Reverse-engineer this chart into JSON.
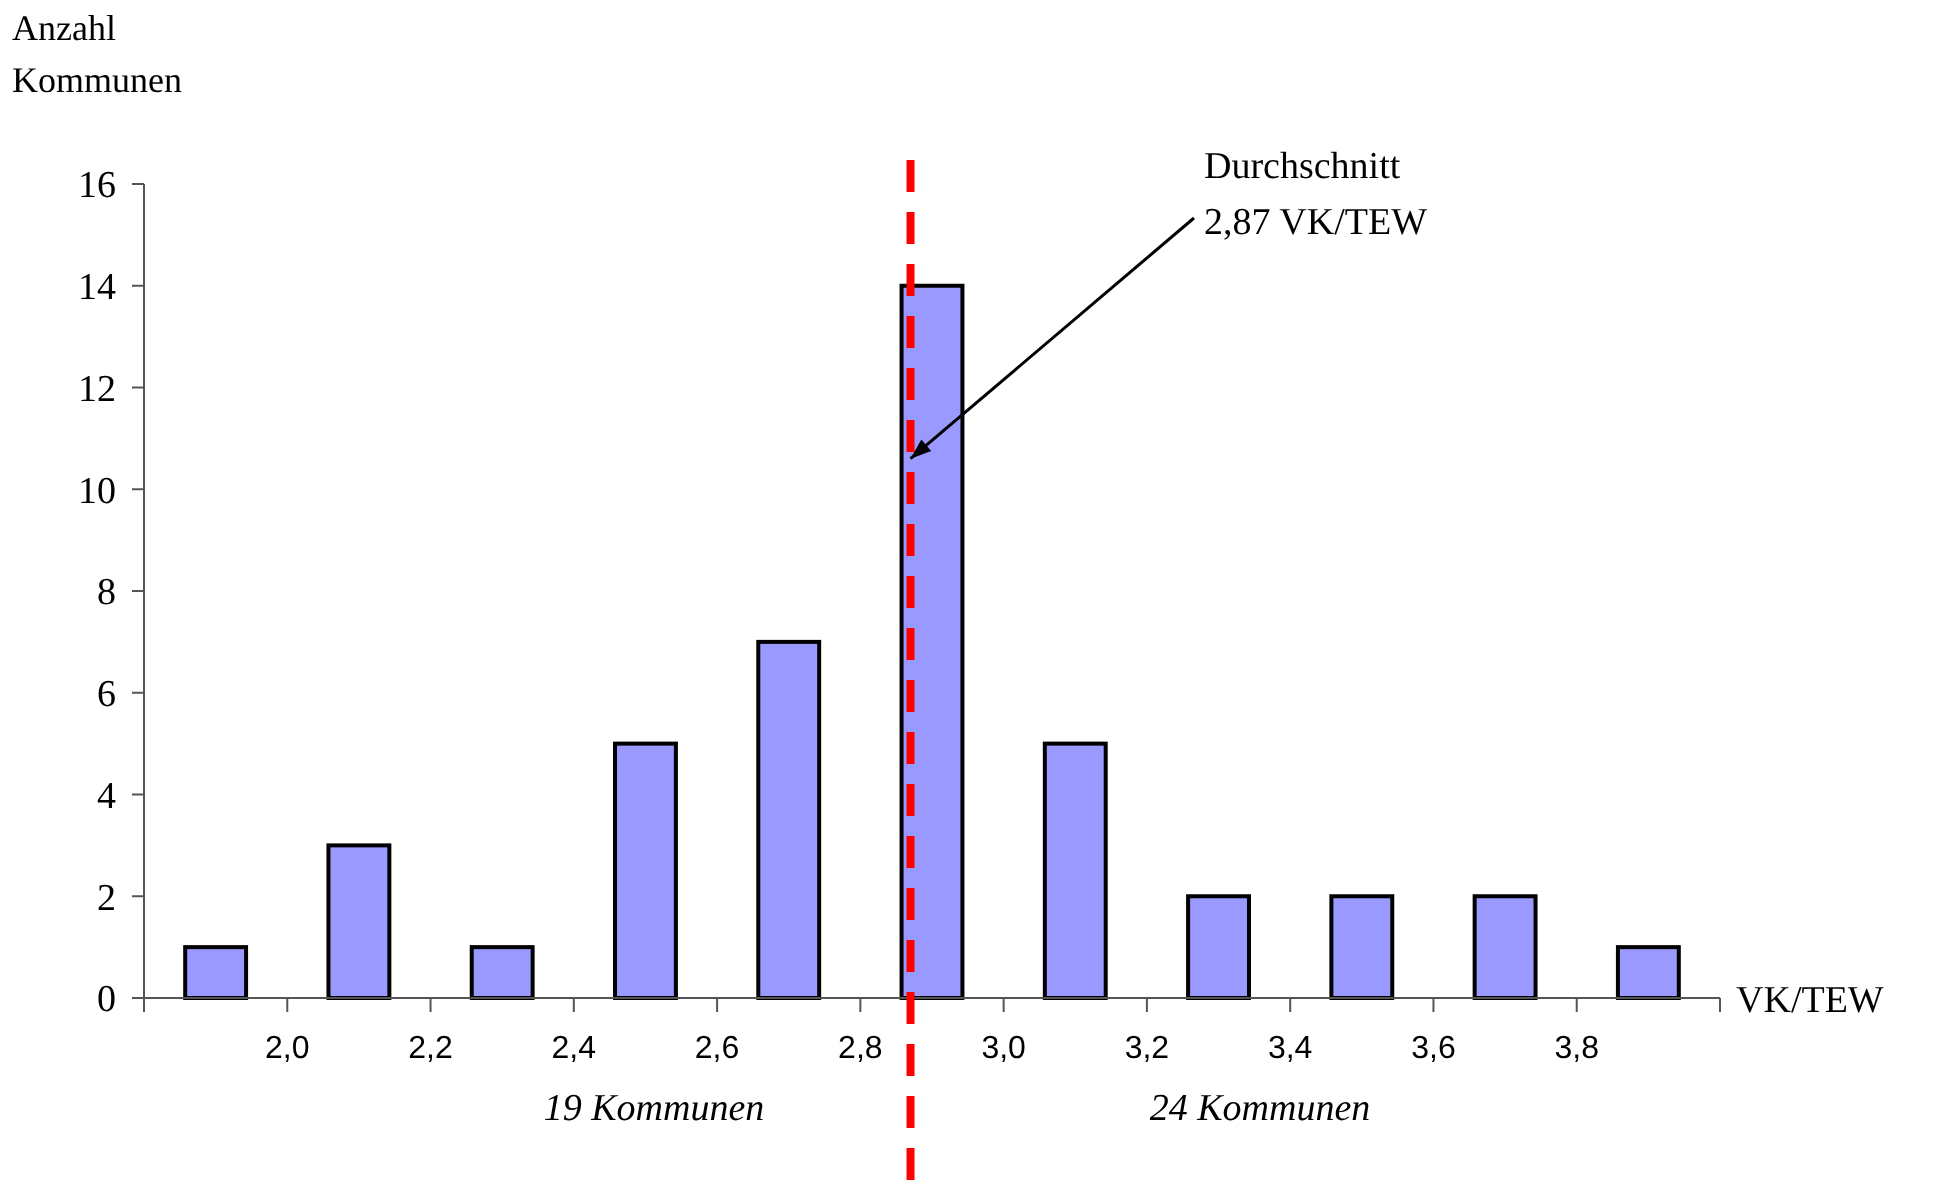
{
  "chart_data": {
    "type": "bar",
    "xlabel": "VK/TEW",
    "ylabel": "Anzahl Kommunen",
    "x": [
      1.9,
      2.1,
      2.3,
      2.5,
      2.7,
      2.9,
      3.1,
      3.3,
      3.5,
      3.7,
      3.9
    ],
    "values": [
      1,
      3,
      1,
      5,
      7,
      14,
      5,
      2,
      2,
      2,
      1
    ],
    "color": "#9999ff",
    "xlim": [
      1.8,
      4.0
    ],
    "xticks": [
      {
        "value": 1.8,
        "label": null
      },
      {
        "value": 2.0,
        "label": "2,0"
      },
      {
        "value": 2.2,
        "label": "2,2"
      },
      {
        "value": 2.4,
        "label": "2,4"
      },
      {
        "value": 2.6,
        "label": "2,6"
      },
      {
        "value": 2.8,
        "label": "2,8"
      },
      {
        "value": 3.0,
        "label": "3,0"
      },
      {
        "value": 3.2,
        "label": "3,2"
      },
      {
        "value": 3.4,
        "label": "3,4"
      },
      {
        "value": 3.6,
        "label": "3,6"
      },
      {
        "value": 3.8,
        "label": "3,8"
      },
      {
        "value": 4.0,
        "label": null
      }
    ],
    "ylim": [
      0,
      16
    ],
    "yticks": [
      0,
      2,
      4,
      6,
      8,
      10,
      12,
      14,
      16
    ],
    "grid": false,
    "ref_lines": [
      {
        "axis": "x",
        "value": 2.87,
        "color": "#ff0000",
        "line_style": "dashed"
      }
    ],
    "annotations": [
      {
        "text": "Durchschnitt\n2,87 VK/TEW",
        "x": 2.87,
        "y": 10.6
      },
      "19 Kommunen",
      "24 Kommunen"
    ]
  }
}
